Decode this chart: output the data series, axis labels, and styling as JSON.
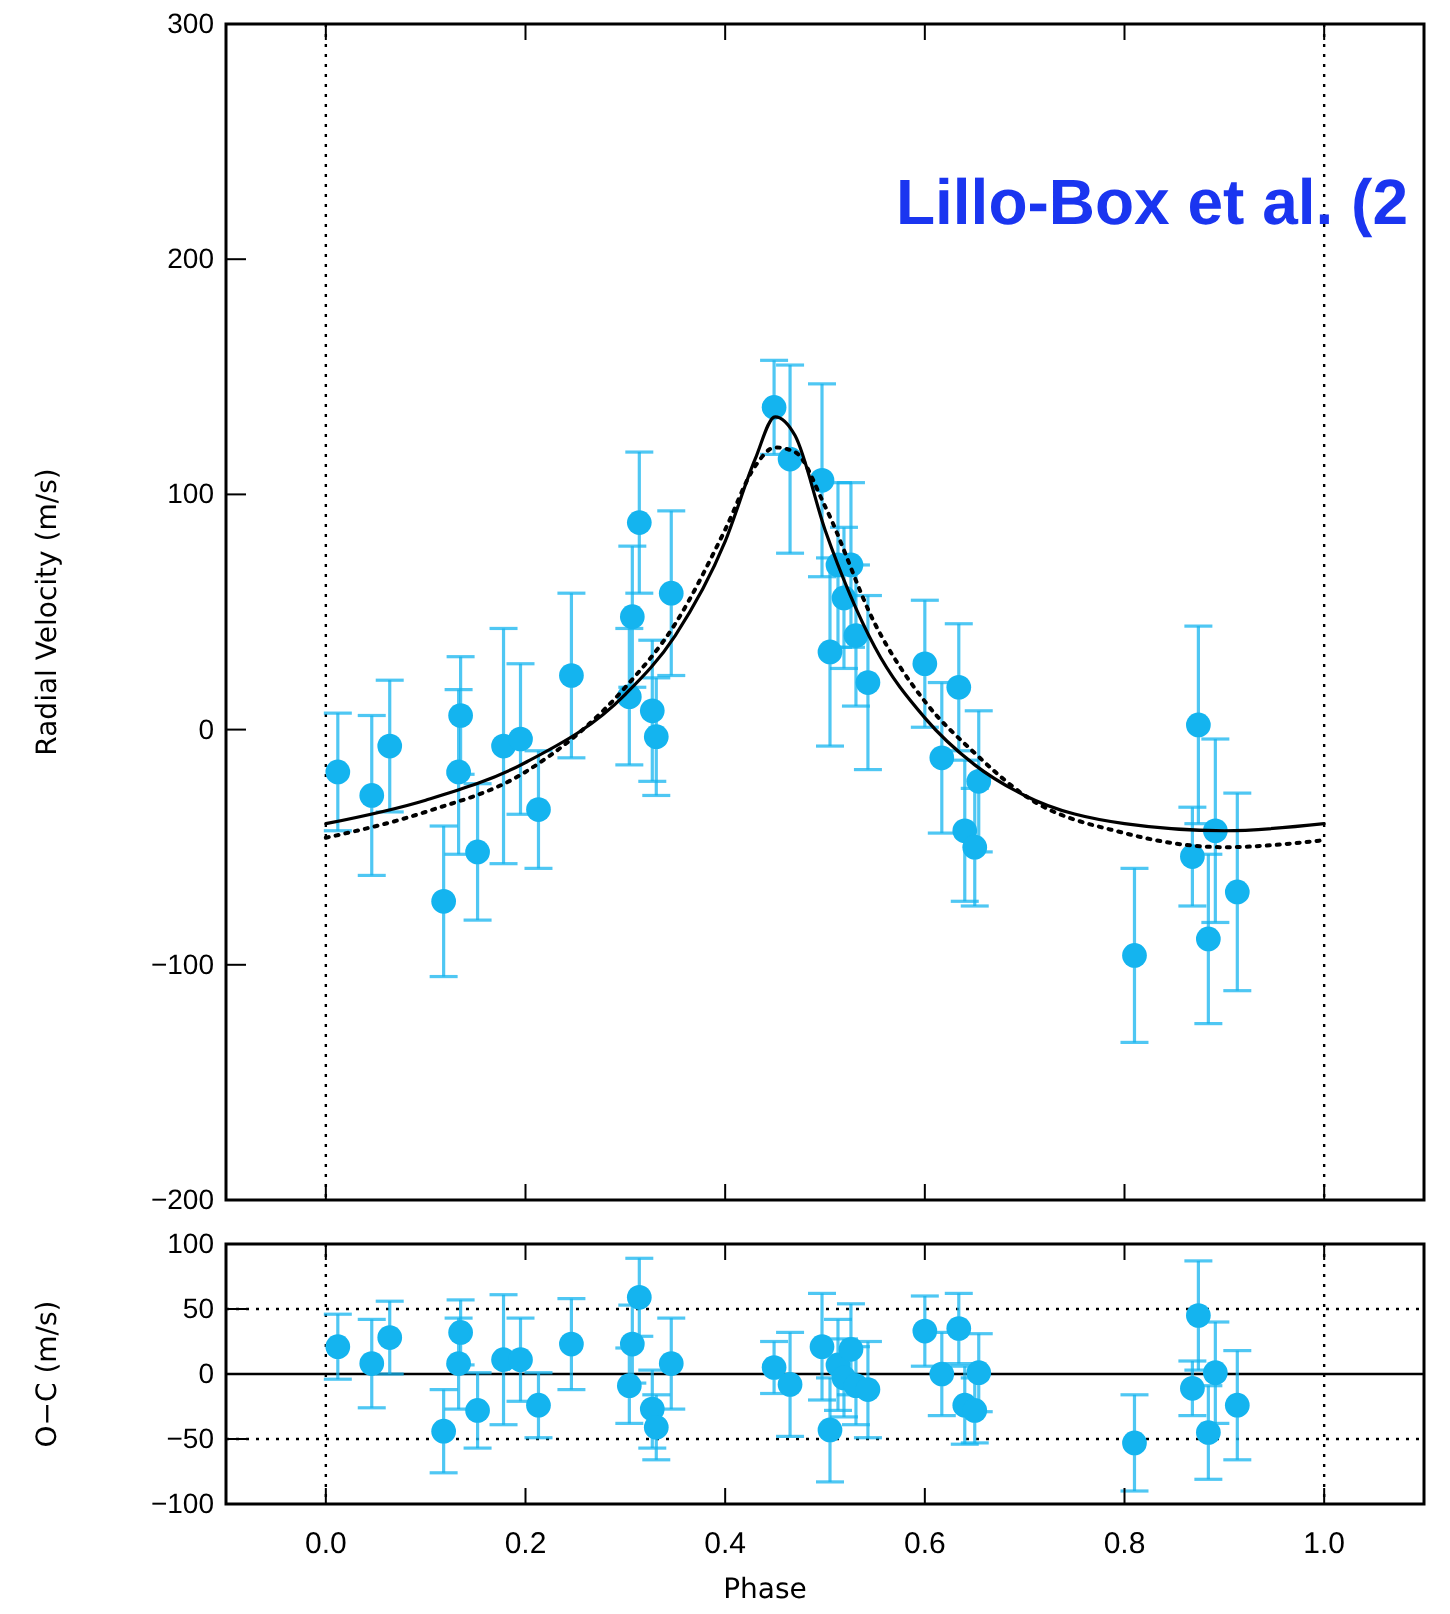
{
  "chart_data": [
    {
      "type": "scatter",
      "ylabel": "Radial Velocity (m/s)",
      "annotations": [
        "Lillo-Box et al. (2"
      ],
      "xlim": [
        -0.1,
        1.1
      ],
      "ylim": [
        -200,
        300
      ],
      "xticks": [
        0,
        0.2,
        0.4,
        0.6,
        0.8,
        1
      ],
      "yticks": [
        {
          "value": -200,
          "label": "−200"
        },
        {
          "value": -100,
          "label": "−100"
        },
        0,
        100,
        200,
        300
      ],
      "tick_labels": "y",
      "grid": false,
      "ref_lines": [
        {
          "axis": "x",
          "value": 0,
          "line_style": "dotted",
          "color": "#000000"
        },
        {
          "axis": "x",
          "value": 1,
          "line_style": "dotted",
          "color": "#000000"
        }
      ],
      "series": [
        {
          "marker": "circle",
          "color": "#14b4ef",
          "x": [
            0.012,
            0.046,
            0.064,
            0.118,
            0.135,
            0.133,
            0.152,
            0.178,
            0.195,
            0.213,
            0.246,
            0.307,
            0.304,
            0.314,
            0.327,
            0.331,
            0.346,
            0.449,
            0.465,
            0.497,
            0.513,
            0.526,
            0.519,
            0.531,
            0.505,
            0.543,
            0.6,
            0.634,
            0.617,
            0.654,
            0.64,
            0.65,
            0.81,
            0.874,
            0.868,
            0.891,
            0.884,
            0.913
          ],
          "values": [
            -18,
            -28,
            -7,
            -73,
            6,
            -18,
            -52,
            -7,
            -4,
            -34,
            23,
            48,
            14,
            88,
            8,
            -3,
            58,
            137,
            115,
            106,
            70,
            70,
            56,
            40,
            33,
            20,
            28,
            18,
            -12,
            -22,
            -43,
            -50,
            -96,
            2,
            -54,
            -43,
            -89,
            -69
          ],
          "errors": [
            25,
            34,
            28,
            32,
            25,
            35,
            29,
            50,
            32,
            25,
            35,
            30,
            29,
            30,
            30,
            25,
            35,
            20,
            40,
            41,
            35,
            35,
            30,
            30,
            40,
            37,
            27,
            27,
            32,
            30,
            30,
            25,
            37,
            42,
            21,
            39,
            36,
            42
          ]
        },
        {
          "type": "line",
          "line_style": "solid",
          "color": "#000000",
          "x": [
            0,
            0.1,
            0.2,
            0.3,
            0.35,
            0.4,
            0.43,
            0.45,
            0.47,
            0.5,
            0.55,
            0.6,
            0.65,
            0.7,
            0.8,
            0.9,
            1
          ],
          "values": [
            -40,
            -30,
            -14,
            15,
            40,
            80,
            115,
            133,
            125,
            85,
            35,
            5,
            -15,
            -28,
            -40,
            -43,
            -40
          ]
        },
        {
          "type": "line",
          "line_style": "dotted",
          "color": "#000000",
          "x": [
            0,
            0.1,
            0.2,
            0.3,
            0.35,
            0.4,
            0.43,
            0.45,
            0.47,
            0.5,
            0.55,
            0.6,
            0.65,
            0.7,
            0.8,
            0.9,
            1
          ],
          "values": [
            -46,
            -35,
            -18,
            18,
            45,
            85,
            112,
            120,
            118,
            95,
            45,
            12,
            -10,
            -28,
            -44,
            -50,
            -47
          ]
        }
      ]
    },
    {
      "type": "scatter",
      "xlabel": "Phase",
      "ylabel": "O−C (m/s)",
      "xlim": [
        -0.1,
        1.1
      ],
      "ylim": [
        -100,
        100
      ],
      "xticks": [
        {
          "value": 0,
          "label": "0.0"
        },
        {
          "value": 0.2,
          "label": "0.2"
        },
        {
          "value": 0.4,
          "label": "0.4"
        },
        {
          "value": 0.6,
          "label": "0.6"
        },
        {
          "value": 0.8,
          "label": "0.8"
        },
        {
          "value": 1,
          "label": "1.0"
        }
      ],
      "yticks": [
        {
          "value": -100,
          "label": "−100"
        },
        {
          "value": -50,
          "label": "−50"
        },
        0,
        50,
        100
      ],
      "grid": false,
      "ref_lines": [
        {
          "axis": "x",
          "value": 0,
          "line_style": "dotted",
          "color": "#000000"
        },
        {
          "axis": "x",
          "value": 1,
          "line_style": "dotted",
          "color": "#000000"
        },
        {
          "axis": "y",
          "value": 50,
          "line_style": "dotted",
          "color": "#000000"
        },
        {
          "axis": "y",
          "value": -50,
          "line_style": "dotted",
          "color": "#000000"
        },
        {
          "axis": "y",
          "value": 0,
          "line_style": "solid",
          "color": "#000000"
        }
      ],
      "series": [
        {
          "marker": "circle",
          "color": "#14b4ef",
          "x": [
            0.012,
            0.046,
            0.064,
            0.118,
            0.135,
            0.133,
            0.152,
            0.178,
            0.195,
            0.213,
            0.246,
            0.307,
            0.304,
            0.314,
            0.327,
            0.331,
            0.346,
            0.449,
            0.465,
            0.497,
            0.513,
            0.526,
            0.519,
            0.531,
            0.505,
            0.543,
            0.6,
            0.634,
            0.617,
            0.654,
            0.64,
            0.65,
            0.81,
            0.874,
            0.868,
            0.891,
            0.884,
            0.913
          ],
          "values": [
            21,
            8,
            28,
            -44,
            32,
            8,
            -28,
            11,
            11,
            -24,
            23,
            23,
            -9,
            59,
            -27,
            -41,
            8,
            5,
            -8,
            21,
            7,
            19,
            -3,
            -9,
            -43,
            -12,
            33,
            35,
            0,
            1,
            -24,
            -28,
            -53,
            45,
            -11,
            1,
            -45,
            -24
          ],
          "errors": [
            25,
            34,
            28,
            32,
            25,
            35,
            29,
            50,
            32,
            25,
            35,
            30,
            29,
            30,
            30,
            25,
            35,
            20,
            40,
            41,
            35,
            35,
            30,
            30,
            40,
            37,
            27,
            27,
            32,
            30,
            30,
            25,
            37,
            42,
            21,
            39,
            36,
            42
          ]
        }
      ]
    }
  ]
}
